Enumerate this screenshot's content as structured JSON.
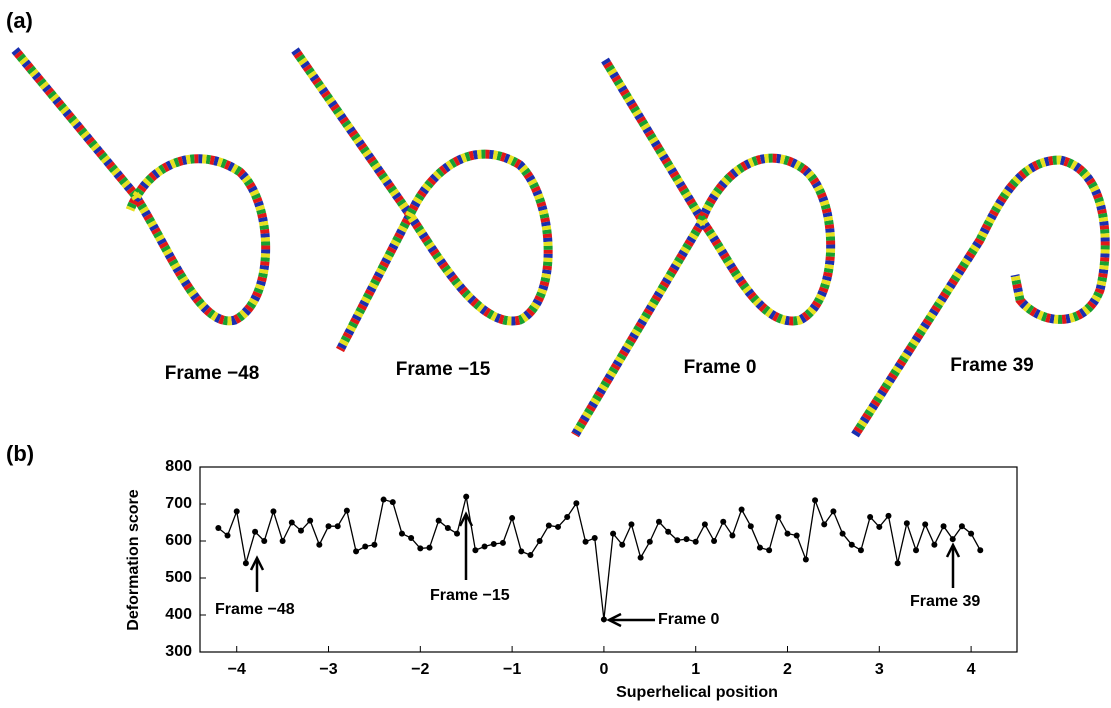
{
  "panel_a": {
    "label": "(a)",
    "frames": [
      "Frame −48",
      "Frame −15",
      "Frame 0",
      "Frame 39"
    ]
  },
  "panel_b": {
    "label": "(b)"
  },
  "chart_data": {
    "type": "line",
    "xlabel": "Superhelical position",
    "ylabel": "Deformation score",
    "x": [
      -4.2,
      -4.1,
      -4.0,
      -3.9,
      -3.8,
      -3.7,
      -3.6,
      -3.5,
      -3.4,
      -3.3,
      -3.2,
      -3.1,
      -3.0,
      -2.9,
      -2.8,
      -2.7,
      -2.6,
      -2.5,
      -2.4,
      -2.3,
      -2.2,
      -2.1,
      -2.0,
      -1.9,
      -1.8,
      -1.7,
      -1.6,
      -1.5,
      -1.4,
      -1.3,
      -1.2,
      -1.1,
      -1.0,
      -0.9,
      -0.8,
      -0.7,
      -0.6,
      -0.5,
      -0.4,
      -0.3,
      -0.2,
      -0.1,
      0.0,
      0.1,
      0.2,
      0.3,
      0.4,
      0.5,
      0.6,
      0.7,
      0.8,
      0.9,
      1.0,
      1.1,
      1.2,
      1.3,
      1.4,
      1.5,
      1.6,
      1.7,
      1.8,
      1.9,
      2.0,
      2.1,
      2.2,
      2.3,
      2.4,
      2.5,
      2.6,
      2.7,
      2.8,
      2.9,
      3.0,
      3.1,
      3.2,
      3.3,
      3.4,
      3.5,
      3.6,
      3.7,
      3.8,
      3.9,
      4.0,
      4.1
    ],
    "series": [
      {
        "color": "#000000",
        "values": [
          635,
          615,
          680,
          540,
          625,
          600,
          680,
          600,
          650,
          628,
          655,
          590,
          640,
          640,
          682,
          572,
          585,
          590,
          712,
          705,
          620,
          608,
          580,
          582,
          655,
          635,
          620,
          720,
          575,
          585,
          592,
          595,
          662,
          572,
          562,
          600,
          642,
          638,
          665,
          702,
          598,
          608,
          388,
          620,
          590,
          645,
          555,
          598,
          652,
          625,
          602,
          605,
          598,
          645,
          600,
          652,
          615,
          685,
          640,
          582,
          575,
          665,
          620,
          615,
          550,
          710,
          645,
          680,
          620,
          590,
          575,
          665,
          638,
          668,
          540,
          648,
          575,
          645,
          590,
          640,
          605,
          640,
          620,
          575
        ]
      }
    ],
    "xlim": [
      -4.4,
      4.5
    ],
    "ylim": [
      300,
      800
    ],
    "xticks": [
      {
        "value": -4,
        "label": "−4"
      },
      {
        "value": -3,
        "label": "−3"
      },
      {
        "value": -2,
        "label": "−2"
      },
      {
        "value": -1,
        "label": "−1"
      },
      0,
      1,
      2,
      3,
      4
    ],
    "yticks": [
      300,
      400,
      500,
      600,
      700,
      800
    ],
    "annotations": [
      "Frame −48",
      "Frame −15",
      "Frame 0",
      "Frame 39"
    ]
  }
}
